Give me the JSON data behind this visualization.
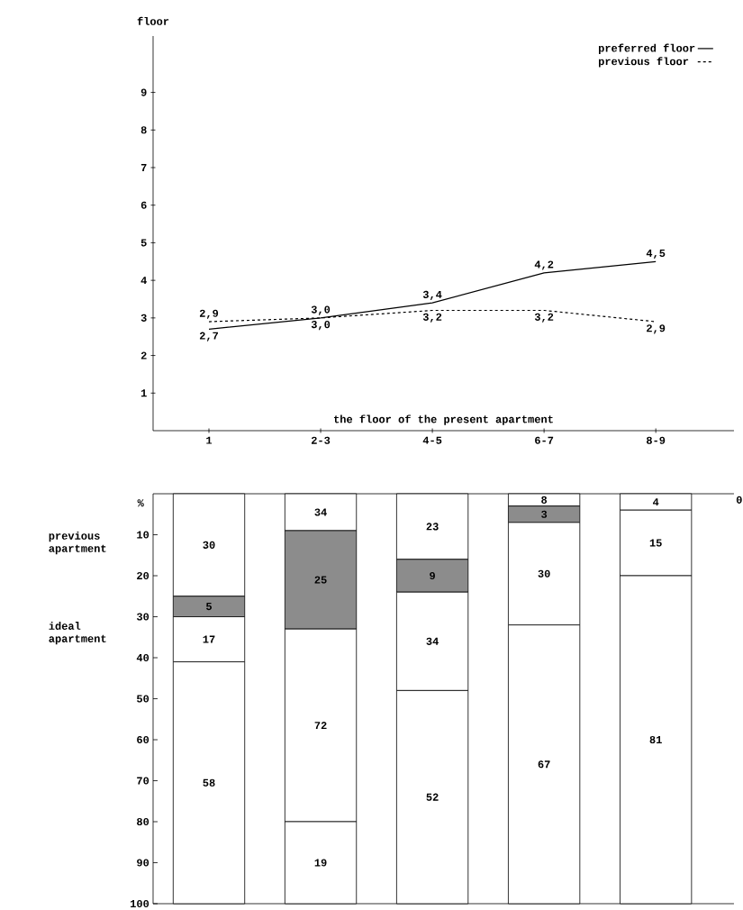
{
  "chart_data": [
    {
      "type": "line",
      "ylabel": "floor",
      "xlabel": "the floor of the present apartment",
      "categories": [
        "1",
        "2-3",
        "4-5",
        "6-7",
        "8-9"
      ],
      "ylim": [
        0,
        10.5
      ],
      "yticks": [
        1,
        2,
        3,
        4,
        5,
        6,
        7,
        8,
        9
      ],
      "legend": "top right",
      "series": [
        {
          "name": "preferred floor",
          "color": "#000000",
          "line_style": "solid",
          "values": [
            2.7,
            3.0,
            3.4,
            4.2,
            4.5
          ],
          "value_labels": [
            "2,7",
            "3,0",
            "3,4",
            "4,2",
            "4,5"
          ]
        },
        {
          "name": "previous floor",
          "color": "#000000",
          "line_style": "dashed",
          "values": [
            2.9,
            3.0,
            3.2,
            3.2,
            2.9
          ],
          "value_labels": [
            "2,9",
            "3,0",
            "3,2",
            "3,2",
            "2,9"
          ]
        }
      ]
    },
    {
      "type": "bar",
      "stacked": true,
      "ylabel": "%",
      "categories": [
        null,
        null,
        null,
        null,
        null
      ],
      "ylim": [
        100,
        0
      ],
      "yticks": [
        10,
        20,
        30,
        40,
        50,
        60,
        70,
        80,
        90,
        100
      ],
      "tick_labels": "y",
      "annotations": [
        "previous apartment",
        "ideal apartment",
        "0",
        "30",
        "5",
        "17",
        "58",
        "34",
        "25",
        "72",
        "19",
        "23",
        "9",
        "34",
        "52",
        "8",
        "3",
        "30",
        "67",
        "4",
        "15",
        "81"
      ],
      "series": [
        {
          "color": "#ffffff",
          "values": [
            25,
            9,
            16,
            3,
            4
          ]
        },
        {
          "color": "#8c8c8c",
          "values": [
            5,
            24,
            8,
            4,
            null
          ]
        },
        {
          "color": "#ffffff",
          "values": [
            11,
            47,
            24,
            25,
            16
          ]
        },
        {
          "color": "#ffffff",
          "values": [
            59,
            20,
            52,
            68,
            80
          ]
        }
      ]
    }
  ]
}
